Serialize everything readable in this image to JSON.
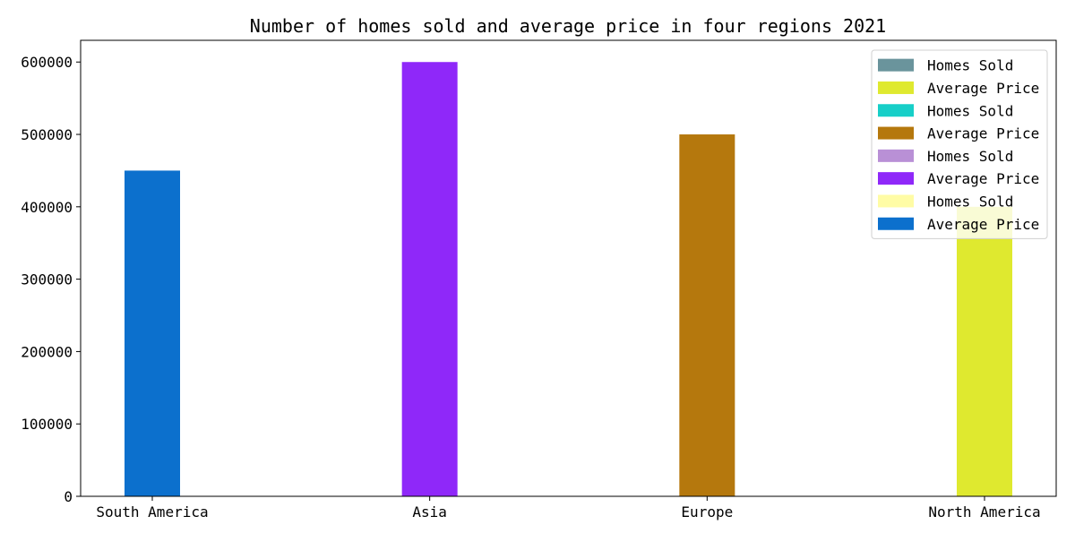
{
  "chart_data": {
    "type": "bar",
    "title": "Number of homes sold and average price in four regions 2021",
    "xlabel": "",
    "ylabel": "",
    "categories": [
      "South America",
      "Asia",
      "Europe",
      "North America"
    ],
    "ylim": [
      0,
      630000
    ],
    "yticks": [
      0,
      100000,
      200000,
      300000,
      400000,
      500000,
      600000
    ],
    "ytick_labels": [
      "0",
      "100000",
      "200000",
      "300000",
      "400000",
      "500000",
      "600000"
    ],
    "series": [
      {
        "name": "Homes Sold",
        "color": "#6a949c",
        "values": [
          0,
          null,
          null,
          null
        ]
      },
      {
        "name": "Average Price",
        "color": "#dfe92f",
        "values": [
          null,
          null,
          null,
          400000
        ]
      },
      {
        "name": "Homes Sold",
        "color": "#17cfc8",
        "values": [
          null,
          null,
          0,
          null
        ]
      },
      {
        "name": "Average Price",
        "color": "#b5780d",
        "values": [
          null,
          null,
          500000,
          null
        ]
      },
      {
        "name": "Homes Sold",
        "color": "#b990d6",
        "values": [
          null,
          0,
          null,
          null
        ]
      },
      {
        "name": "Average Price",
        "color": "#8f28f9",
        "values": [
          null,
          600000,
          null,
          null
        ]
      },
      {
        "name": "Homes Sold",
        "color": "#fffca5",
        "values": [
          null,
          null,
          null,
          0
        ]
      },
      {
        "name": "Average Price",
        "color": "#0c70cd",
        "values": [
          450000,
          null,
          null,
          null
        ]
      }
    ],
    "grid": false,
    "legend_position": "top-right"
  }
}
